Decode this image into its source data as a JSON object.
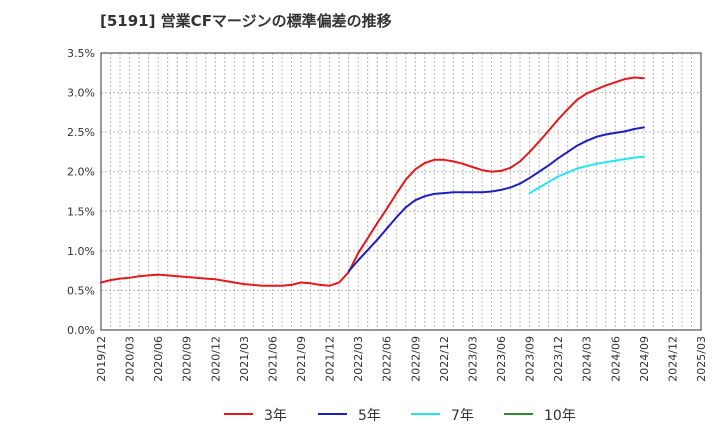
{
  "title": "[5191]  営業CFマージンの標準偏差の推移",
  "chart_data": {
    "type": "line",
    "title": "[5191]  営業CFマージンの標準偏差の推移",
    "xlabel": "",
    "ylabel": "",
    "ylim": [
      0,
      3.5
    ],
    "y_ticks": [
      "0.0%",
      "0.5%",
      "1.0%",
      "1.5%",
      "2.0%",
      "2.5%",
      "3.0%",
      "3.5%"
    ],
    "x_ticks": [
      "2019/12",
      "2020/03",
      "2020/06",
      "2020/09",
      "2020/12",
      "2021/03",
      "2021/06",
      "2021/09",
      "2021/12",
      "2022/03",
      "2022/06",
      "2022/09",
      "2022/12",
      "2023/03",
      "2023/06",
      "2023/09",
      "2023/12",
      "2024/03",
      "2024/06",
      "2024/09",
      "2024/12",
      "2025/03"
    ],
    "x_unit": "month",
    "x_start": "2019-12",
    "grid": true,
    "legend_position": "bottom",
    "series": [
      {
        "name": "3年",
        "color": "#e31a1c",
        "points": [
          [
            "2019-12",
            0.6
          ],
          [
            "2020-01",
            0.63
          ],
          [
            "2020-02",
            0.65
          ],
          [
            "2020-03",
            0.66
          ],
          [
            "2020-04",
            0.68
          ],
          [
            "2020-05",
            0.69
          ],
          [
            "2020-06",
            0.7
          ],
          [
            "2020-07",
            0.69
          ],
          [
            "2020-08",
            0.68
          ],
          [
            "2020-09",
            0.67
          ],
          [
            "2020-10",
            0.66
          ],
          [
            "2020-11",
            0.65
          ],
          [
            "2020-12",
            0.64
          ],
          [
            "2021-01",
            0.62
          ],
          [
            "2021-02",
            0.6
          ],
          [
            "2021-03",
            0.58
          ],
          [
            "2021-04",
            0.57
          ],
          [
            "2021-05",
            0.56
          ],
          [
            "2021-06",
            0.56
          ],
          [
            "2021-07",
            0.56
          ],
          [
            "2021-08",
            0.57
          ],
          [
            "2021-09",
            0.6
          ],
          [
            "2021-10",
            0.59
          ],
          [
            "2021-11",
            0.57
          ],
          [
            "2021-12",
            0.56
          ],
          [
            "2022-01",
            0.6
          ],
          [
            "2022-02",
            0.73
          ],
          [
            "2022-03",
            0.97
          ],
          [
            "2022-04",
            1.16
          ],
          [
            "2022-05",
            1.35
          ],
          [
            "2022-06",
            1.53
          ],
          [
            "2022-07",
            1.72
          ],
          [
            "2022-08",
            1.9
          ],
          [
            "2022-09",
            2.03
          ],
          [
            "2022-10",
            2.11
          ],
          [
            "2022-11",
            2.15
          ],
          [
            "2022-12",
            2.15
          ],
          [
            "2023-01",
            2.13
          ],
          [
            "2023-02",
            2.1
          ],
          [
            "2023-03",
            2.06
          ],
          [
            "2023-04",
            2.02
          ],
          [
            "2023-05",
            2.0
          ],
          [
            "2023-06",
            2.01
          ],
          [
            "2023-07",
            2.05
          ],
          [
            "2023-08",
            2.13
          ],
          [
            "2023-09",
            2.25
          ],
          [
            "2023-10",
            2.38
          ],
          [
            "2023-11",
            2.52
          ],
          [
            "2023-12",
            2.66
          ],
          [
            "2024-01",
            2.79
          ],
          [
            "2024-02",
            2.91
          ],
          [
            "2024-03",
            2.99
          ],
          [
            "2024-04",
            3.04
          ],
          [
            "2024-05",
            3.09
          ],
          [
            "2024-06",
            3.13
          ],
          [
            "2024-07",
            3.17
          ],
          [
            "2024-08",
            3.19
          ],
          [
            "2024-09",
            3.18
          ]
        ]
      },
      {
        "name": "5年",
        "color": "#1f1fbf",
        "points": [
          [
            "2022-02",
            0.74
          ],
          [
            "2022-03",
            0.88
          ],
          [
            "2022-04",
            1.01
          ],
          [
            "2022-05",
            1.14
          ],
          [
            "2022-06",
            1.28
          ],
          [
            "2022-07",
            1.42
          ],
          [
            "2022-08",
            1.55
          ],
          [
            "2022-09",
            1.64
          ],
          [
            "2022-10",
            1.69
          ],
          [
            "2022-11",
            1.72
          ],
          [
            "2022-12",
            1.73
          ],
          [
            "2023-01",
            1.74
          ],
          [
            "2023-02",
            1.74
          ],
          [
            "2023-03",
            1.74
          ],
          [
            "2023-04",
            1.74
          ],
          [
            "2023-05",
            1.75
          ],
          [
            "2023-06",
            1.77
          ],
          [
            "2023-07",
            1.8
          ],
          [
            "2023-08",
            1.85
          ],
          [
            "2023-09",
            1.92
          ],
          [
            "2023-10",
            2.0
          ],
          [
            "2023-11",
            2.08
          ],
          [
            "2023-12",
            2.17
          ],
          [
            "2024-01",
            2.25
          ],
          [
            "2024-02",
            2.33
          ],
          [
            "2024-03",
            2.39
          ],
          [
            "2024-04",
            2.44
          ],
          [
            "2024-05",
            2.47
          ],
          [
            "2024-06",
            2.49
          ],
          [
            "2024-07",
            2.51
          ],
          [
            "2024-08",
            2.54
          ],
          [
            "2024-09",
            2.56
          ]
        ]
      },
      {
        "name": "7年",
        "color": "#22e5f0",
        "points": [
          [
            "2023-09",
            1.73
          ],
          [
            "2023-10",
            1.8
          ],
          [
            "2023-11",
            1.87
          ],
          [
            "2023-12",
            1.94
          ],
          [
            "2024-01",
            1.99
          ],
          [
            "2024-02",
            2.04
          ],
          [
            "2024-03",
            2.07
          ],
          [
            "2024-04",
            2.1
          ],
          [
            "2024-05",
            2.12
          ],
          [
            "2024-06",
            2.14
          ],
          [
            "2024-07",
            2.16
          ],
          [
            "2024-08",
            2.18
          ],
          [
            "2024-09",
            2.19
          ]
        ]
      },
      {
        "name": "10年",
        "color": "#2e8b2e",
        "points": []
      }
    ]
  }
}
